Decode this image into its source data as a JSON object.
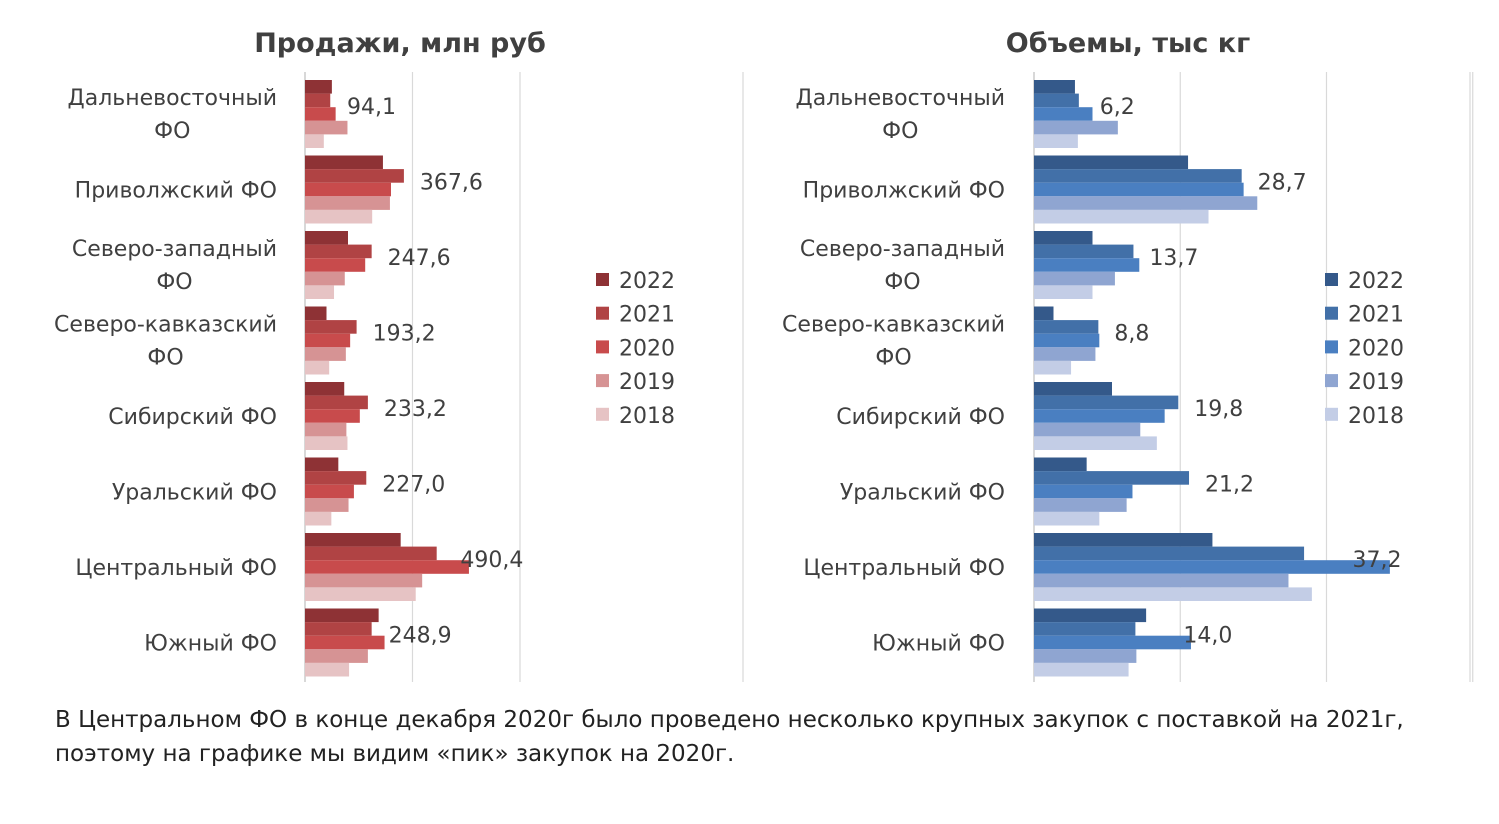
{
  "chart_data": [
    {
      "type": "bar",
      "orientation": "horizontal",
      "title": "Продажи, млн руб",
      "categories": [
        "Дальневосточный ФО",
        "Приволжский ФО",
        "Северо-западный ФО",
        "Северо-кавказский ФО",
        "Сибирский ФО",
        "Уральский ФО",
        "Центральный ФО",
        "Южный ФО"
      ],
      "category_lines": [
        [
          "Дальневосточный",
          "ФО"
        ],
        [
          "Приволжский ФО"
        ],
        [
          "Северо-западный",
          "ФО"
        ],
        [
          "Северо-кавказский",
          "ФО"
        ],
        [
          "Сибирский ФО"
        ],
        [
          "Уральский ФО"
        ],
        [
          "Центральный ФО"
        ],
        [
          "Южный ФО"
        ]
      ],
      "xlim": [
        0,
        500
      ],
      "grid": true,
      "legend_position": "right",
      "series": [
        {
          "name": "2022",
          "color": "#8e3235",
          "values": [
            50,
            145,
            80,
            40,
            73,
            62,
            178,
            137
          ]
        },
        {
          "name": "2021",
          "color": "#b04344",
          "values": [
            47,
            184,
            124,
            96,
            117,
            114,
            245,
            124
          ]
        },
        {
          "name": "2020",
          "color": "#c84b4c",
          "values": [
            57,
            160,
            112,
            84,
            102,
            91,
            305,
            148
          ]
        },
        {
          "name": "2019",
          "color": "#d69394",
          "values": [
            79,
            158,
            74,
            76,
            77,
            81,
            218,
            117
          ]
        },
        {
          "name": "2018",
          "color": "#e6c3c4",
          "values": [
            35,
            125,
            54,
            45,
            79,
            49,
            206,
            82
          ]
        }
      ],
      "data_labels": [
        "94,1",
        "367,6",
        "247,6",
        "193,2",
        "233,2",
        "227,0",
        "490,4",
        "248,9"
      ],
      "data_label_values": [
        94.1,
        367.6,
        247.6,
        193.2,
        233.2,
        227.0,
        490.4,
        248.9
      ]
    },
    {
      "type": "bar",
      "orientation": "horizontal",
      "title": "Объемы, тыс кг",
      "categories": [
        "Дальневосточный ФО",
        "Приволжский ФО",
        "Северо-западный ФО",
        "Северо-кавказский ФО",
        "Сибирский ФО",
        "Уральский ФО",
        "Центральный ФО",
        "Южный ФО"
      ],
      "category_lines": [
        [
          "Дальневосточный",
          "ФО"
        ],
        [
          "Приволжский ФО"
        ],
        [
          "Северо-западный",
          "ФО"
        ],
        [
          "Северо-кавказский",
          "ФО"
        ],
        [
          "Сибирский ФО"
        ],
        [
          "Уральский ФО"
        ],
        [
          "Центральный ФО"
        ],
        [
          "Южный ФО"
        ]
      ],
      "xlim": [
        0,
        45
      ],
      "grid": true,
      "legend_position": "right",
      "series": [
        {
          "name": "2022",
          "color": "#34598a",
          "values": [
            4.2,
            15.8,
            6.0,
            2.0,
            8.0,
            5.4,
            18.3,
            11.5
          ]
        },
        {
          "name": "2021",
          "color": "#4270a8",
          "values": [
            4.6,
            21.3,
            10.2,
            6.6,
            14.8,
            15.9,
            27.7,
            10.4
          ]
        },
        {
          "name": "2020",
          "color": "#4a7fc1",
          "values": [
            6.0,
            21.5,
            10.8,
            6.7,
            13.4,
            10.1,
            36.5,
            16.1
          ]
        },
        {
          "name": "2019",
          "color": "#8fa5d1",
          "values": [
            8.6,
            22.9,
            8.3,
            6.3,
            10.9,
            9.5,
            26.1,
            10.5
          ]
        },
        {
          "name": "2018",
          "color": "#c3cde6",
          "values": [
            4.5,
            17.9,
            6.0,
            3.8,
            12.6,
            6.7,
            28.5,
            9.7
          ]
        }
      ],
      "data_labels": [
        "6,2",
        "28,7",
        "13,7",
        "8,8",
        "19,8",
        "21,2",
        "37,2",
        "14,0"
      ],
      "data_label_values": [
        6.2,
        28.7,
        13.7,
        8.8,
        19.8,
        21.2,
        37.2,
        14.0
      ]
    }
  ],
  "note": "В Центральном ФО в конце декабря 2020г было проведено несколько крупных закупок с поставкой на 2021г, поэтому на графике мы видим «пик» закупок на 2020г."
}
